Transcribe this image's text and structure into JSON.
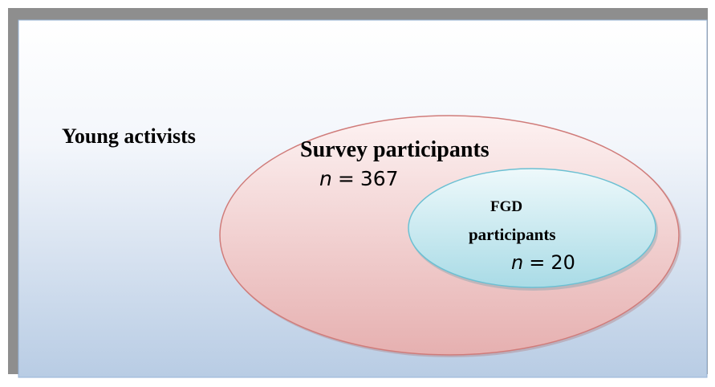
{
  "outer_group": {
    "label": "Young activists"
  },
  "survey_group": {
    "label": "Survey participants",
    "n_symbol": "n",
    "equals": "=",
    "n": 367
  },
  "fgd_group": {
    "label_line1": "FGD",
    "label_line2": "participants",
    "n_symbol": "n",
    "equals": "=",
    "n": 20
  }
}
